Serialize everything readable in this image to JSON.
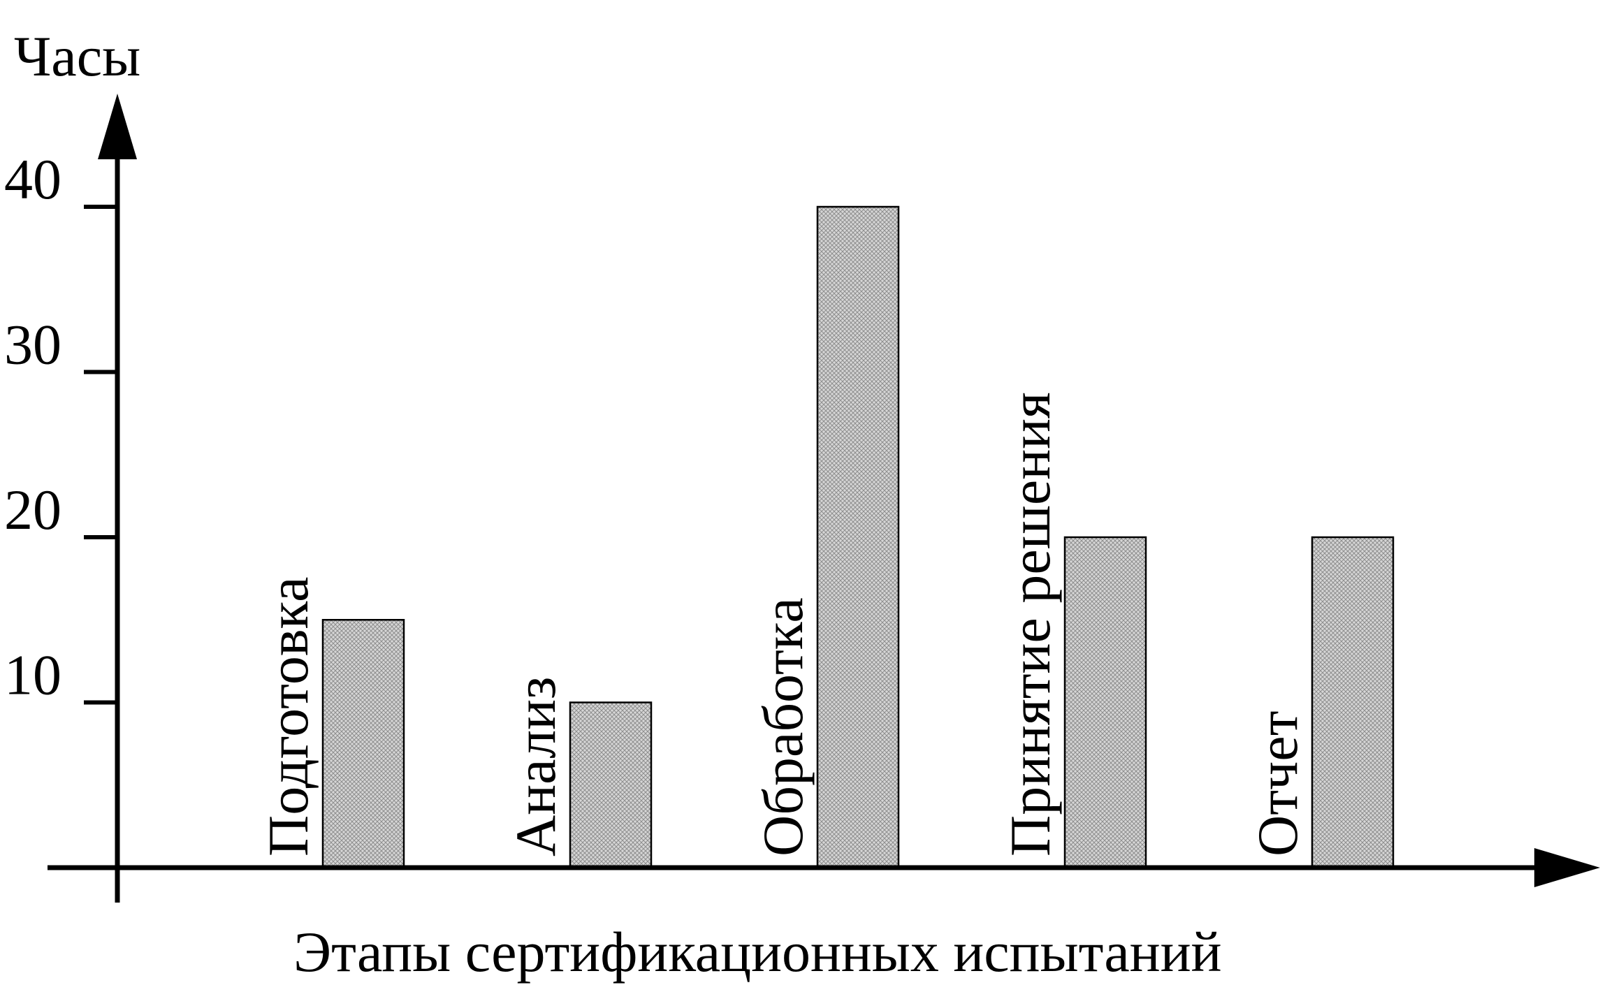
{
  "chart_data": {
    "type": "bar",
    "title": "",
    "ylabel": "Часы",
    "xlabel": "Этапы сертификационных испытаний",
    "categories": [
      "Подготовка",
      "Анализ",
      "Обработка",
      "Принятие решения",
      "Отчет"
    ],
    "values": [
      15,
      10,
      40,
      20,
      20
    ],
    "yticks": [
      "10",
      "20",
      "30",
      "40"
    ],
    "ylim": [
      0,
      40
    ],
    "grid": false,
    "legend": "none",
    "colors": {
      "bar_fill": "#cfcfcf",
      "hatch": "#8a8a8a",
      "axis": "#000000"
    }
  }
}
